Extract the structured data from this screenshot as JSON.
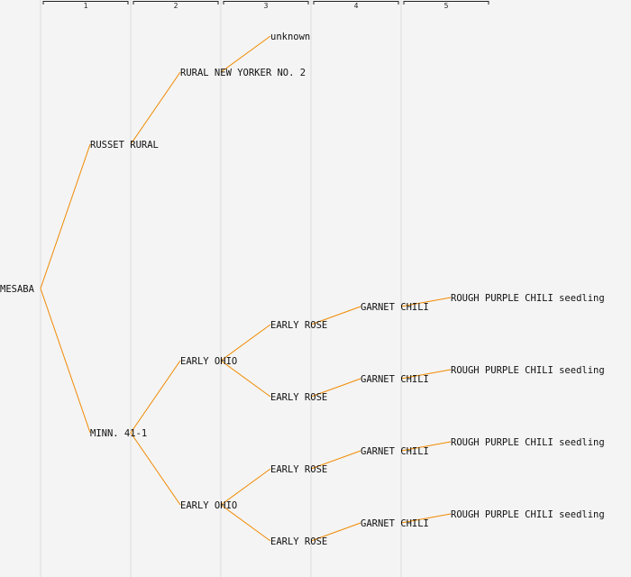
{
  "generations": [
    "1",
    "2",
    "3",
    "4",
    "5"
  ],
  "colors": {
    "edge": "#f08a00",
    "background": "#f4f4f4",
    "text": "#111111"
  },
  "tree": {
    "name": "MESABA",
    "children": [
      {
        "name": "RUSSET RURAL",
        "children": [
          {
            "name": "RURAL NEW YORKER NO. 2",
            "children": [
              {
                "name": "unknown",
                "children": []
              }
            ]
          }
        ]
      },
      {
        "name": "MINN. 41-1",
        "children": [
          {
            "name": "EARLY OHIO",
            "children": [
              {
                "name": "EARLY ROSE",
                "children": [
                  {
                    "name": "GARNET CHILI",
                    "children": [
                      {
                        "name": "ROUGH PURPLE CHILI seedling",
                        "children": []
                      }
                    ]
                  }
                ]
              },
              {
                "name": "EARLY ROSE",
                "children": [
                  {
                    "name": "GARNET CHILI",
                    "children": [
                      {
                        "name": "ROUGH PURPLE CHILI seedling",
                        "children": []
                      }
                    ]
                  }
                ]
              }
            ]
          },
          {
            "name": "EARLY OHIO",
            "children": [
              {
                "name": "EARLY ROSE",
                "children": [
                  {
                    "name": "GARNET CHILI",
                    "children": [
                      {
                        "name": "ROUGH PURPLE CHILI seedling",
                        "children": []
                      }
                    ]
                  }
                ]
              },
              {
                "name": "EARLY ROSE",
                "children": [
                  {
                    "name": "GARNET CHILI",
                    "children": [
                      {
                        "name": "ROUGH PURPLE CHILI seedling",
                        "children": []
                      }
                    ]
                  }
                ]
              }
            ]
          }
        ]
      }
    ]
  }
}
